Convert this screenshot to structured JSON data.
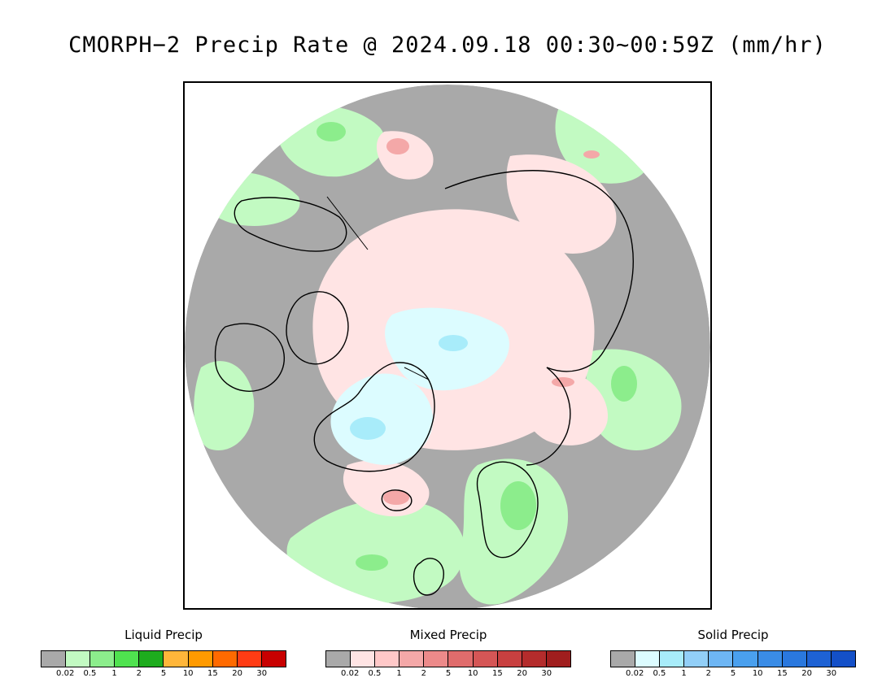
{
  "title": "CMORPH−2 Precip Rate @ 2024.09.18 00:30~00:59Z (mm/hr)",
  "map": {
    "projection": "north-polar-stereographic",
    "background_color": "#a9a9a9",
    "coastline_color": "#000000",
    "regions": [
      {
        "name": "arctic-ocean-solid-precip",
        "type": "solid",
        "level": "0.02-0.5"
      },
      {
        "name": "greenland-solid-precip",
        "type": "solid",
        "level": "0.02-0.5"
      },
      {
        "name": "polar-mixed-precip",
        "type": "mixed",
        "level": "0.02-0.5"
      },
      {
        "name": "iceland-mixed-precip",
        "type": "mixed",
        "level": "1-5"
      },
      {
        "name": "scandinavia-liquid-precip",
        "type": "liquid",
        "level": "0.02-1"
      },
      {
        "name": "north-atlantic-liquid-precip",
        "type": "liquid",
        "level": "0.02-0.5"
      },
      {
        "name": "bering-sea-liquid-precip",
        "type": "liquid",
        "level": "0.02-1"
      },
      {
        "name": "siberia-liquid-precip",
        "type": "liquid",
        "level": "0.02-1"
      }
    ]
  },
  "legends": [
    {
      "id": "liquid",
      "title": "Liquid Precip",
      "colors": [
        "#a9a9a9",
        "#c2fac2",
        "#8ced8c",
        "#4fe24f",
        "#1eac1e",
        "#ffb63a",
        "#ff9a00",
        "#ff6a00",
        "#ff3c14",
        "#c80000"
      ],
      "ticks": [
        "0.02",
        "0.5",
        "1",
        "2",
        "5",
        "10",
        "15",
        "20",
        "30"
      ]
    },
    {
      "id": "mixed",
      "title": "Mixed Precip",
      "colors": [
        "#a9a9a9",
        "#ffe4e4",
        "#ffc8c8",
        "#f4a8a8",
        "#ec8a8a",
        "#e06c6c",
        "#d55656",
        "#c84040",
        "#b42c2c",
        "#a01e1e"
      ],
      "ticks": [
        "0.02",
        "0.5",
        "1",
        "2",
        "5",
        "10",
        "15",
        "20",
        "30"
      ]
    },
    {
      "id": "solid",
      "title": "Solid Precip",
      "colors": [
        "#a9a9a9",
        "#dcfcff",
        "#a8ecfa",
        "#92cff8",
        "#6eb6f4",
        "#4aa0ee",
        "#3a8ce6",
        "#2a78de",
        "#1e62d4",
        "#1450c8"
      ],
      "ticks": [
        "0.02",
        "0.5",
        "1",
        "2",
        "5",
        "10",
        "15",
        "20",
        "30"
      ]
    }
  ]
}
